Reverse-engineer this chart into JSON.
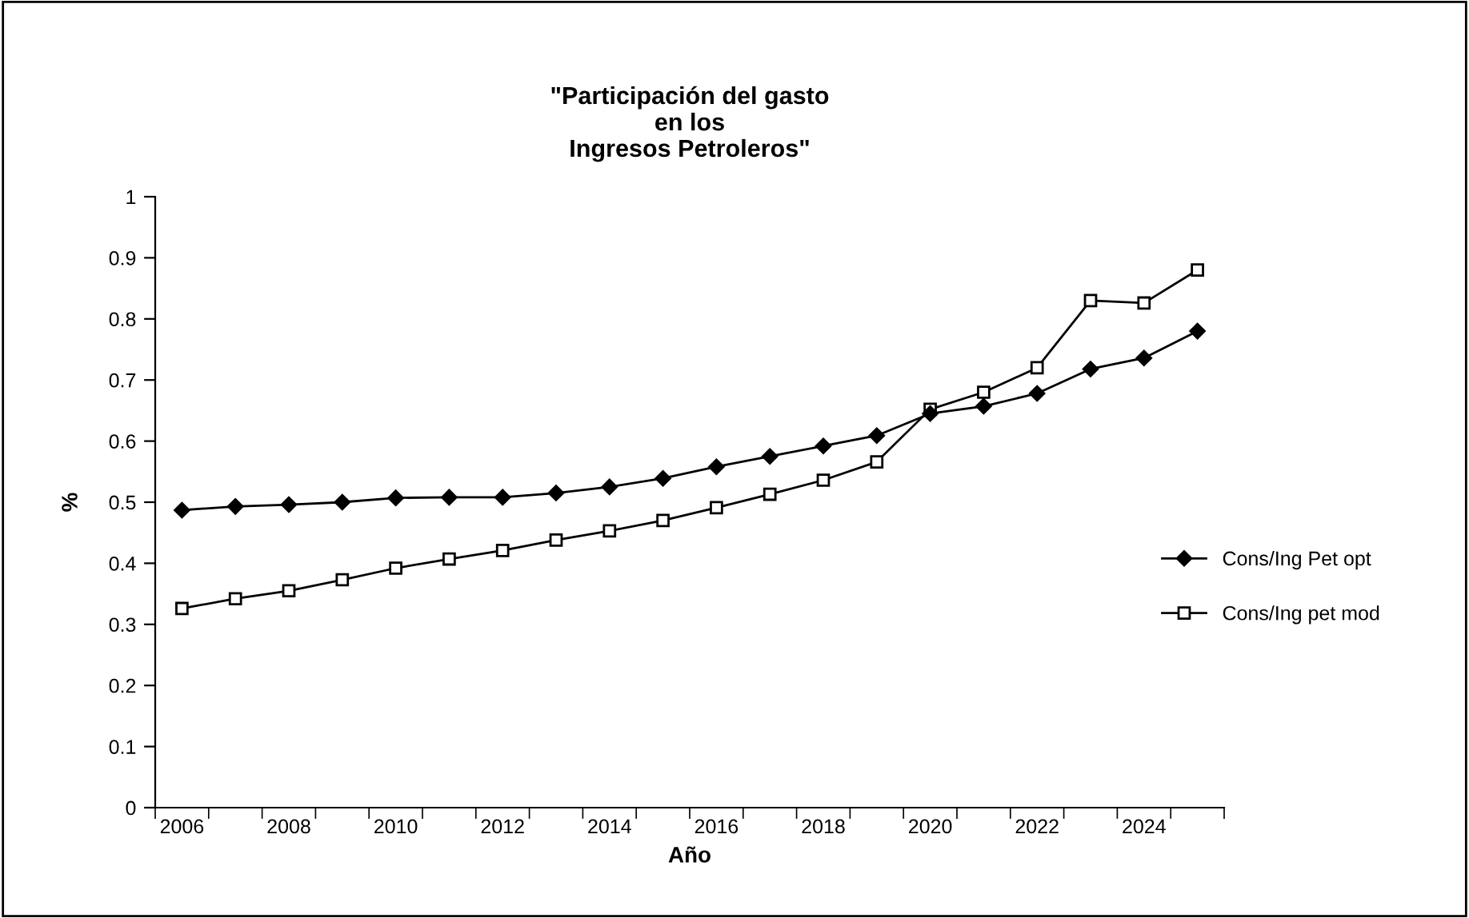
{
  "chart_data": {
    "type": "line",
    "title": "\"Participación del gasto\nen los\nIngresos Petroleros\"",
    "xlabel": "Año",
    "ylabel": "%",
    "categories": [
      "2006",
      null,
      "2008",
      null,
      "2010",
      null,
      "2012",
      null,
      "2014",
      null,
      "2016",
      null,
      "2018",
      null,
      "2020",
      null,
      "2022",
      null,
      "2024",
      null
    ],
    "series": [
      {
        "name": "Cons/Ing Pet opt",
        "color": "#000000",
        "marker": "diamond",
        "values": [
          0.487,
          0.493,
          0.496,
          0.5,
          0.507,
          0.508,
          0.508,
          0.515,
          0.525,
          0.539,
          0.558,
          0.575,
          0.592,
          0.609,
          0.645,
          0.657,
          0.678,
          0.718,
          0.736,
          0.78
        ]
      },
      {
        "name": "Cons/Ing pet mod",
        "color": "#000000",
        "marker": "square",
        "values": [
          0.326,
          0.342,
          0.355,
          0.373,
          0.392,
          0.407,
          0.421,
          0.438,
          0.453,
          0.47,
          0.491,
          0.513,
          0.536,
          0.566,
          0.652,
          0.68,
          0.72,
          0.83,
          0.826,
          0.88
        ]
      }
    ],
    "ylim": [
      0,
      1
    ],
    "yticks": [
      0,
      0.1,
      0.2,
      0.3,
      0.4,
      0.5,
      0.6,
      0.7,
      0.8,
      0.9,
      1
    ],
    "grid": false,
    "legend": "right"
  }
}
